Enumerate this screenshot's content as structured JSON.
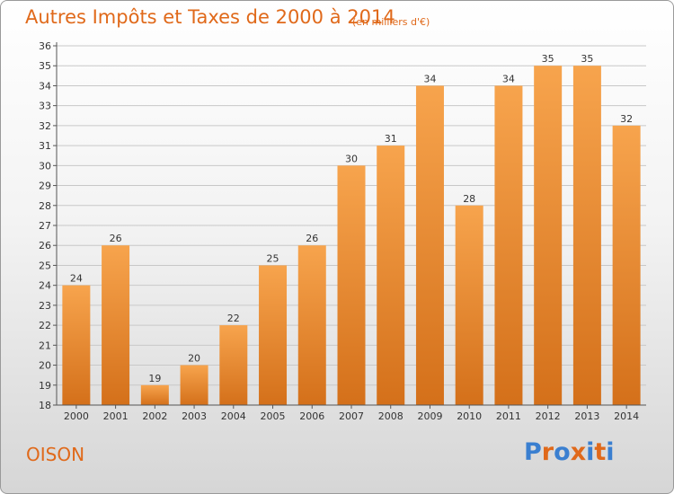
{
  "header": {
    "title": "Autres Impôts et Taxes de 2000 à 2014",
    "unit": "(en milliers d'€)"
  },
  "footer": {
    "commune": "OISON",
    "logo_text": "Proxiti"
  },
  "colors": {
    "bar_light": "#f7a44d",
    "bar_dark": "#d4701a",
    "title": "#e0691a",
    "grid": "#c8c8c8",
    "logo": [
      "#3a7fd0",
      "#e0691a",
      "#3a7fd0",
      "#e0691a",
      "#3a7fd0",
      "#e0691a",
      "#3a7fd0"
    ]
  },
  "chart_data": {
    "type": "bar",
    "title": "Autres Impôts et Taxes de 2000 à 2014",
    "subtitle": "(en milliers d'€)",
    "xlabel": "",
    "ylabel": "",
    "categories": [
      "2000",
      "2001",
      "2002",
      "2003",
      "2004",
      "2005",
      "2006",
      "2007",
      "2008",
      "2009",
      "2010",
      "2011",
      "2012",
      "2013",
      "2014"
    ],
    "values": [
      24,
      26,
      19,
      20,
      22,
      25,
      26,
      30,
      31,
      34,
      28,
      34,
      35,
      35,
      32
    ],
    "ylim": [
      18,
      36
    ],
    "yticks": [
      18,
      19,
      20,
      21,
      22,
      23,
      24,
      25,
      26,
      27,
      28,
      29,
      30,
      31,
      32,
      33,
      34,
      35,
      36
    ],
    "grid": true,
    "data_labels": true
  }
}
